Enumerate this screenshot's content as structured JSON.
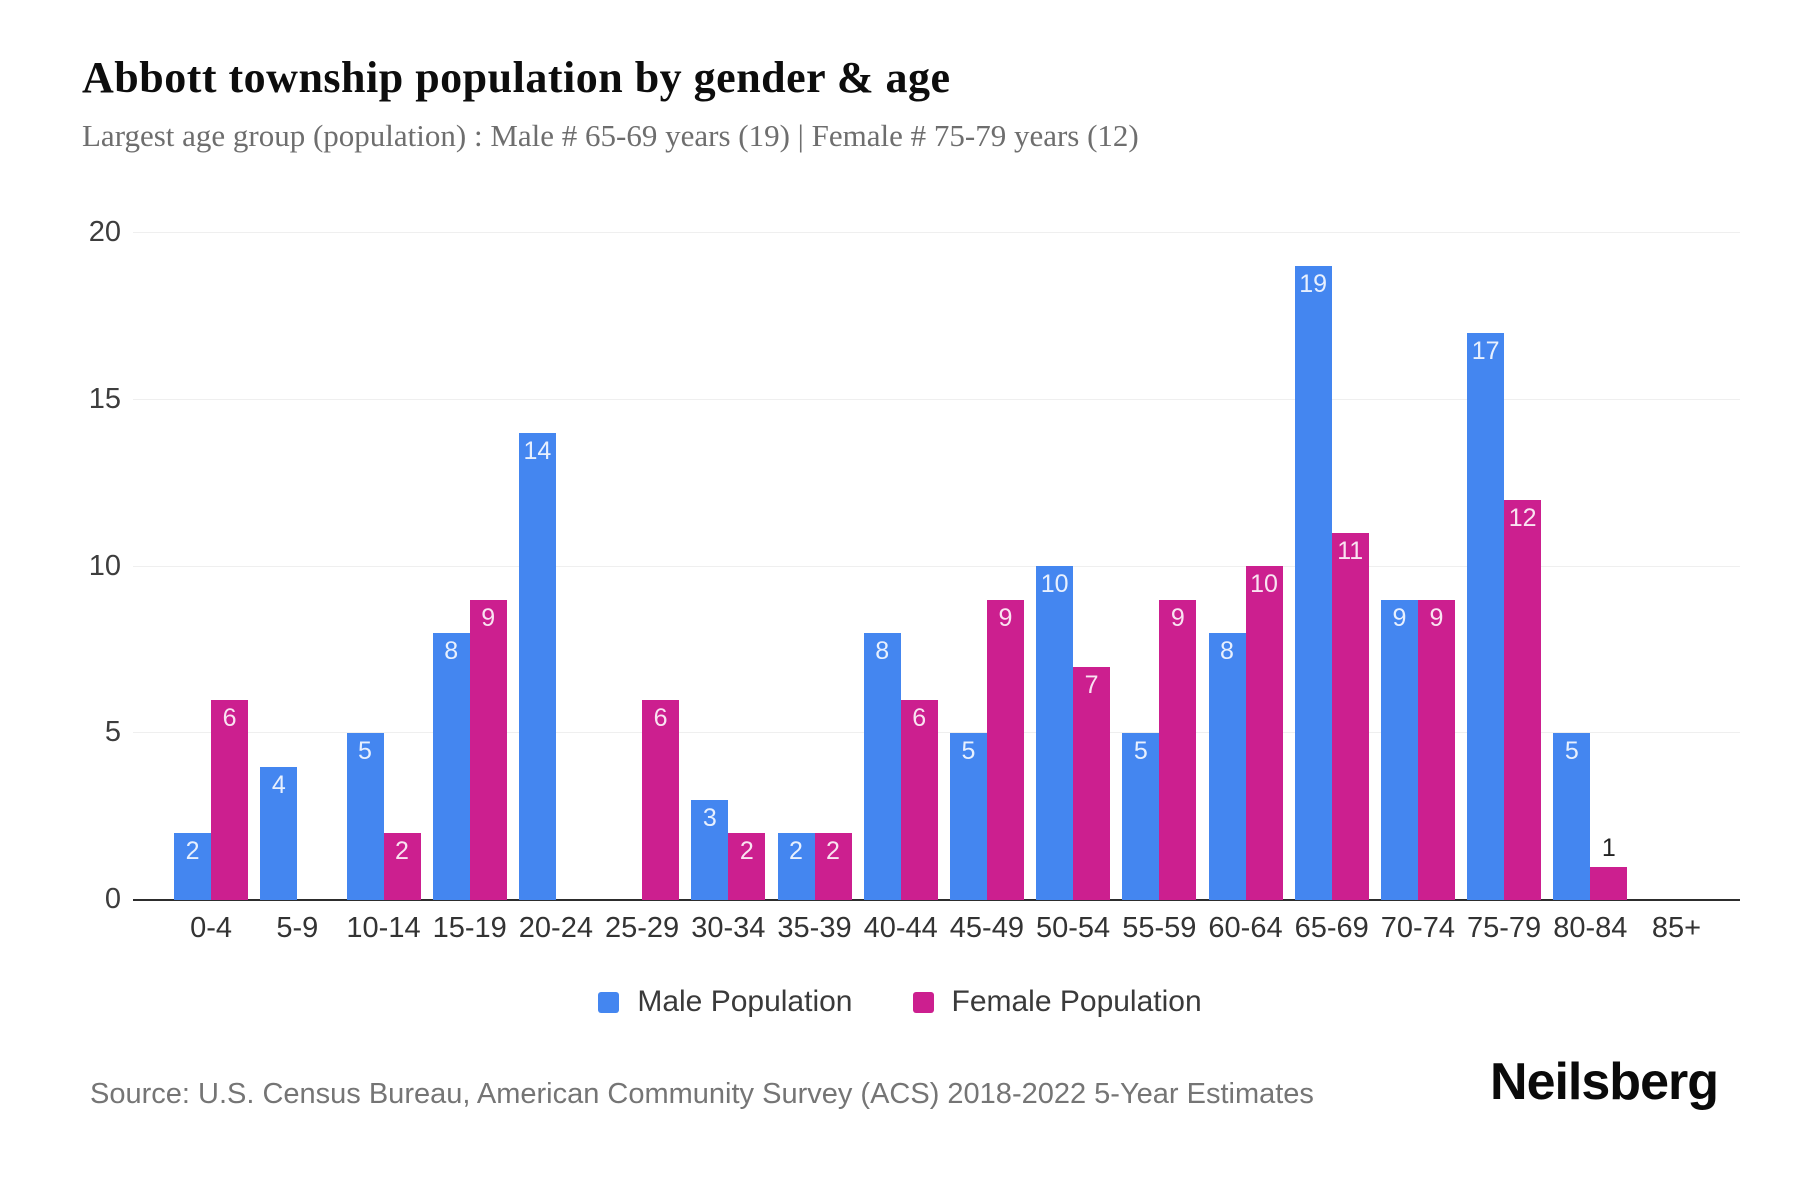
{
  "header": {
    "title": "Abbott township population by gender & age",
    "subtitle": "Largest age group (population) : Male # 65-69 years (19) | Female # 75-79 years (12)"
  },
  "chart_data": {
    "type": "bar",
    "title": "Abbott township population by gender & age",
    "categories": [
      "0-4",
      "5-9",
      "10-14",
      "15-19",
      "20-24",
      "25-29",
      "30-34",
      "35-39",
      "40-44",
      "45-49",
      "50-54",
      "55-59",
      "60-64",
      "65-69",
      "70-74",
      "75-79",
      "80-84",
      "85+"
    ],
    "series": [
      {
        "name": "Male Population",
        "color": "#4486F0",
        "values": [
          2,
          4,
          5,
          8,
          14,
          0,
          3,
          2,
          8,
          5,
          10,
          5,
          8,
          19,
          9,
          17,
          5,
          0
        ]
      },
      {
        "name": "Female Population",
        "color": "#CC1F8F",
        "values": [
          6,
          0,
          2,
          9,
          0,
          6,
          2,
          2,
          6,
          9,
          7,
          9,
          10,
          11,
          9,
          12,
          1,
          0
        ]
      }
    ],
    "xlabel": "",
    "ylabel": "",
    "ylim": [
      0,
      20
    ],
    "yticks": [
      0,
      5,
      10,
      15,
      20
    ],
    "grid": true,
    "legend_position": "bottom",
    "value_labels": true
  },
  "colors": {
    "male": "#4486F0",
    "female": "#CC1F8F",
    "gridline": "#efefef",
    "axis": "#2d2d2d"
  },
  "footer": {
    "source": "Source: U.S. Census Bureau, American Community Survey (ACS) 2018-2022 5-Year Estimates",
    "brand": "Neilsberg"
  }
}
